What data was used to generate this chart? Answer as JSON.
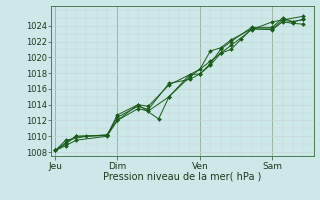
{
  "background_color": "#cce8e8",
  "grid_color_major": "#b8d4d4",
  "grid_color_minor": "#c8e0e0",
  "line_color": "#1a5c1a",
  "marker_color": "#1a5c1a",
  "xlabel": "Pression niveau de la mer( hPa )",
  "ylim": [
    1007.5,
    1026.5
  ],
  "yticks": [
    1008,
    1010,
    1012,
    1014,
    1016,
    1018,
    1020,
    1022,
    1024
  ],
  "day_labels": [
    "Jeu",
    "Dim",
    "Ven",
    "Sam"
  ],
  "day_positions": [
    0.0,
    3.0,
    7.0,
    10.5
  ],
  "xlim": [
    -0.2,
    12.5
  ],
  "series": [
    [
      1008.2,
      1008.8,
      1009.5,
      1010.0,
      1012.0,
      1013.5,
      1013.2,
      1015.0,
      1017.8,
      1017.9,
      1019.0,
      1020.5,
      1021.0,
      1022.3,
      1023.6,
      1023.5,
      1024.5,
      1024.3,
      1024.2
    ],
    [
      1008.2,
      1009.0,
      1010.0,
      1010.1,
      1012.7,
      1014.0,
      1013.8,
      1016.5,
      1017.8,
      1018.5,
      1020.8,
      1021.2,
      1022.2,
      1023.6,
      1023.6,
      1024.7,
      1024.5,
      1024.8
    ],
    [
      1008.2,
      1009.2,
      1010.0,
      1010.1,
      1012.4,
      1013.8,
      1013.4,
      1016.7,
      1017.2,
      1017.9,
      1019.2,
      1021.0,
      1022.0,
      1023.8,
      1023.8,
      1025.0,
      1024.5,
      1024.8
    ],
    [
      1008.2,
      1009.5,
      1010.0,
      1010.2,
      1012.0,
      1014.0,
      1012.2,
      1015.0,
      1017.5,
      1019.5,
      1020.5,
      1021.5,
      1023.5,
      1024.5,
      1025.2
    ]
  ],
  "series_x": [
    [
      0,
      0.5,
      1.0,
      2.5,
      3.0,
      4.0,
      4.5,
      5.5,
      6.5,
      7.0,
      7.5,
      8.0,
      8.5,
      9.0,
      9.5,
      10.5,
      11.0,
      11.5,
      12.0
    ],
    [
      0,
      0.5,
      1.0,
      2.5,
      3.0,
      4.0,
      4.5,
      5.5,
      6.5,
      7.0,
      7.5,
      8.0,
      8.5,
      9.5,
      10.5,
      11.0,
      11.5,
      12.0
    ],
    [
      0,
      0.5,
      1.0,
      2.5,
      3.0,
      4.0,
      4.5,
      5.5,
      6.5,
      7.0,
      7.5,
      8.0,
      8.5,
      9.5,
      10.5,
      11.0,
      11.5,
      12.0
    ],
    [
      0,
      0.5,
      1.5,
      2.5,
      3.0,
      4.0,
      5.0,
      5.5,
      6.5,
      7.5,
      8.0,
      8.5,
      9.5,
      10.5,
      12.0
    ]
  ]
}
